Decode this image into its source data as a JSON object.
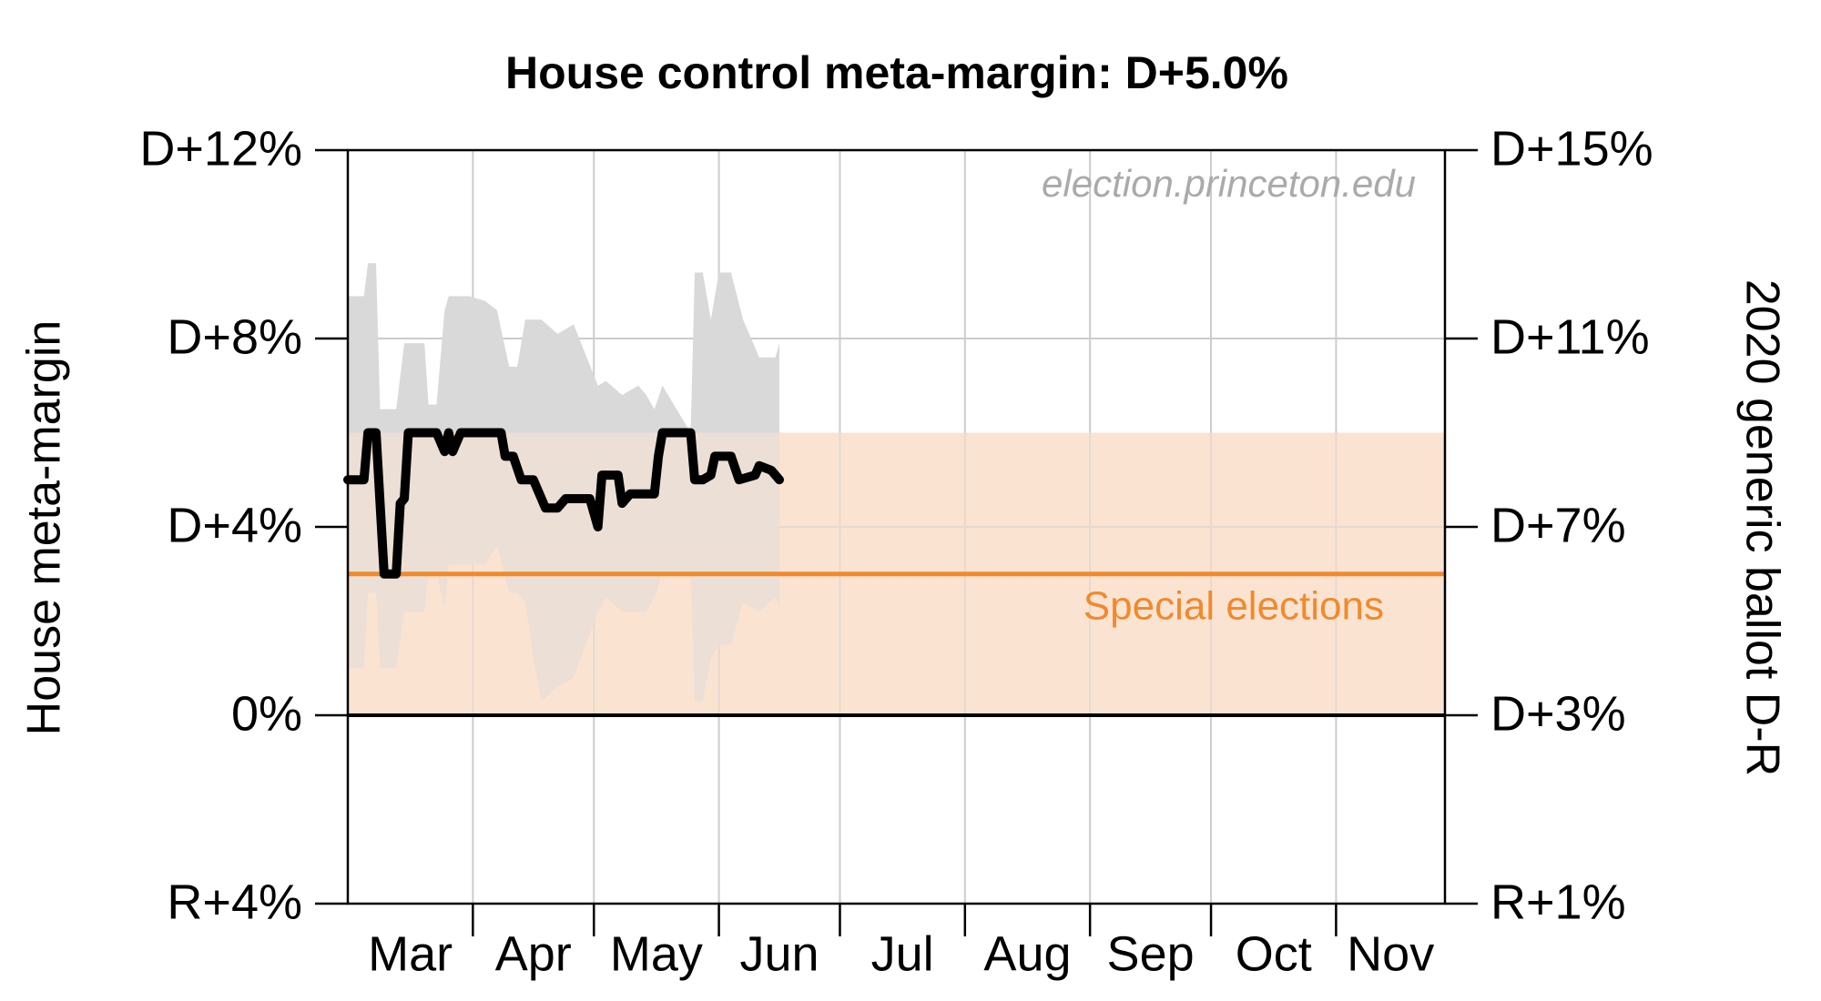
{
  "chart_data": {
    "type": "line",
    "title": "House control meta-margin: D+5.0%",
    "ylabel": "House meta-margin",
    "y2label": "2020 generic ballot D-R",
    "watermark": "election.princeton.edu",
    "ylim": [
      -4,
      12
    ],
    "yticks": [
      {
        "value": -4,
        "label": "R+4%"
      },
      {
        "value": 0,
        "label": "0%"
      },
      {
        "value": 4,
        "label": "D+4%"
      },
      {
        "value": 8,
        "label": "D+8%"
      },
      {
        "value": 12,
        "label": "D+12%"
      }
    ],
    "y2lim": [
      -1,
      15
    ],
    "y2ticks": [
      {
        "value": -1,
        "label": "R+1%"
      },
      {
        "value": 3,
        "label": "D+3%"
      },
      {
        "value": 7,
        "label": "D+7%"
      },
      {
        "value": 11,
        "label": "D+11%"
      },
      {
        "value": 15,
        "label": "D+15%"
      }
    ],
    "xlim": [
      0,
      272
    ],
    "xticks": [
      31,
      61,
      92,
      122,
      153,
      184,
      214,
      245
    ],
    "months": [
      "Mar",
      "Apr",
      "May",
      "Jun",
      "Jul",
      "Aug",
      "Sep",
      "Oct",
      "Nov"
    ],
    "grid": true,
    "band": {
      "color": "#d9d9d9",
      "x": [
        0,
        4,
        5,
        7,
        8,
        12,
        14,
        19,
        20,
        22,
        24,
        25,
        30,
        34,
        37,
        40,
        42,
        44,
        46,
        48,
        52,
        56,
        62,
        64,
        68,
        72,
        74,
        76,
        78,
        85,
        86,
        88,
        90,
        92,
        95,
        98,
        102,
        106,
        107
      ],
      "upper": [
        8.9,
        8.9,
        9.6,
        9.6,
        6.5,
        6.5,
        7.9,
        7.9,
        6.6,
        6.6,
        8.6,
        8.9,
        8.9,
        8.8,
        8.6,
        7.4,
        7.4,
        8.4,
        8.4,
        8.4,
        8.1,
        8.3,
        7.0,
        7.1,
        6.8,
        7.0,
        6.8,
        6.5,
        7.0,
        6.0,
        9.4,
        9.4,
        8.4,
        9.4,
        9.4,
        8.4,
        7.6,
        7.6,
        7.9
      ],
      "lower": [
        1.0,
        1.0,
        2.6,
        2.6,
        1.0,
        1.0,
        2.2,
        2.2,
        3.0,
        3.0,
        2.3,
        3.2,
        3.2,
        3.2,
        3.6,
        2.6,
        2.6,
        2.4,
        1.2,
        0.3,
        0.6,
        0.8,
        2.2,
        2.5,
        2.2,
        2.2,
        2.2,
        2.5,
        3.0,
        3.0,
        0.3,
        0.3,
        1.2,
        1.5,
        1.5,
        2.4,
        2.2,
        2.5,
        2.3
      ]
    },
    "series": [
      {
        "color": "#000000",
        "x": [
          0,
          4,
          5,
          7,
          9,
          12,
          13,
          14,
          15,
          22,
          24,
          25,
          26,
          28,
          38,
          39,
          41,
          43,
          46,
          49,
          52,
          54,
          60,
          62,
          63,
          67,
          68,
          70,
          76,
          77,
          78,
          85,
          86,
          88,
          90,
          91,
          95,
          97,
          101,
          102,
          105,
          107
        ],
        "values": [
          5.0,
          5.0,
          6.0,
          6.0,
          3.0,
          3.0,
          4.5,
          4.6,
          6.0,
          6.0,
          5.6,
          6.0,
          5.6,
          6.0,
          6.0,
          5.5,
          5.5,
          5.0,
          5.0,
          4.4,
          4.4,
          4.6,
          4.6,
          4.0,
          5.1,
          5.1,
          4.5,
          4.7,
          4.7,
          5.5,
          6.0,
          6.0,
          5.0,
          5.0,
          5.1,
          5.5,
          5.5,
          5.0,
          5.1,
          5.3,
          5.2,
          5.0
        ]
      }
    ],
    "special_elections": {
      "label": "Special elections",
      "value": 3,
      "band": [
        0,
        6
      ],
      "color": "#f08a2c",
      "band_color": "#fbe3d2"
    }
  }
}
